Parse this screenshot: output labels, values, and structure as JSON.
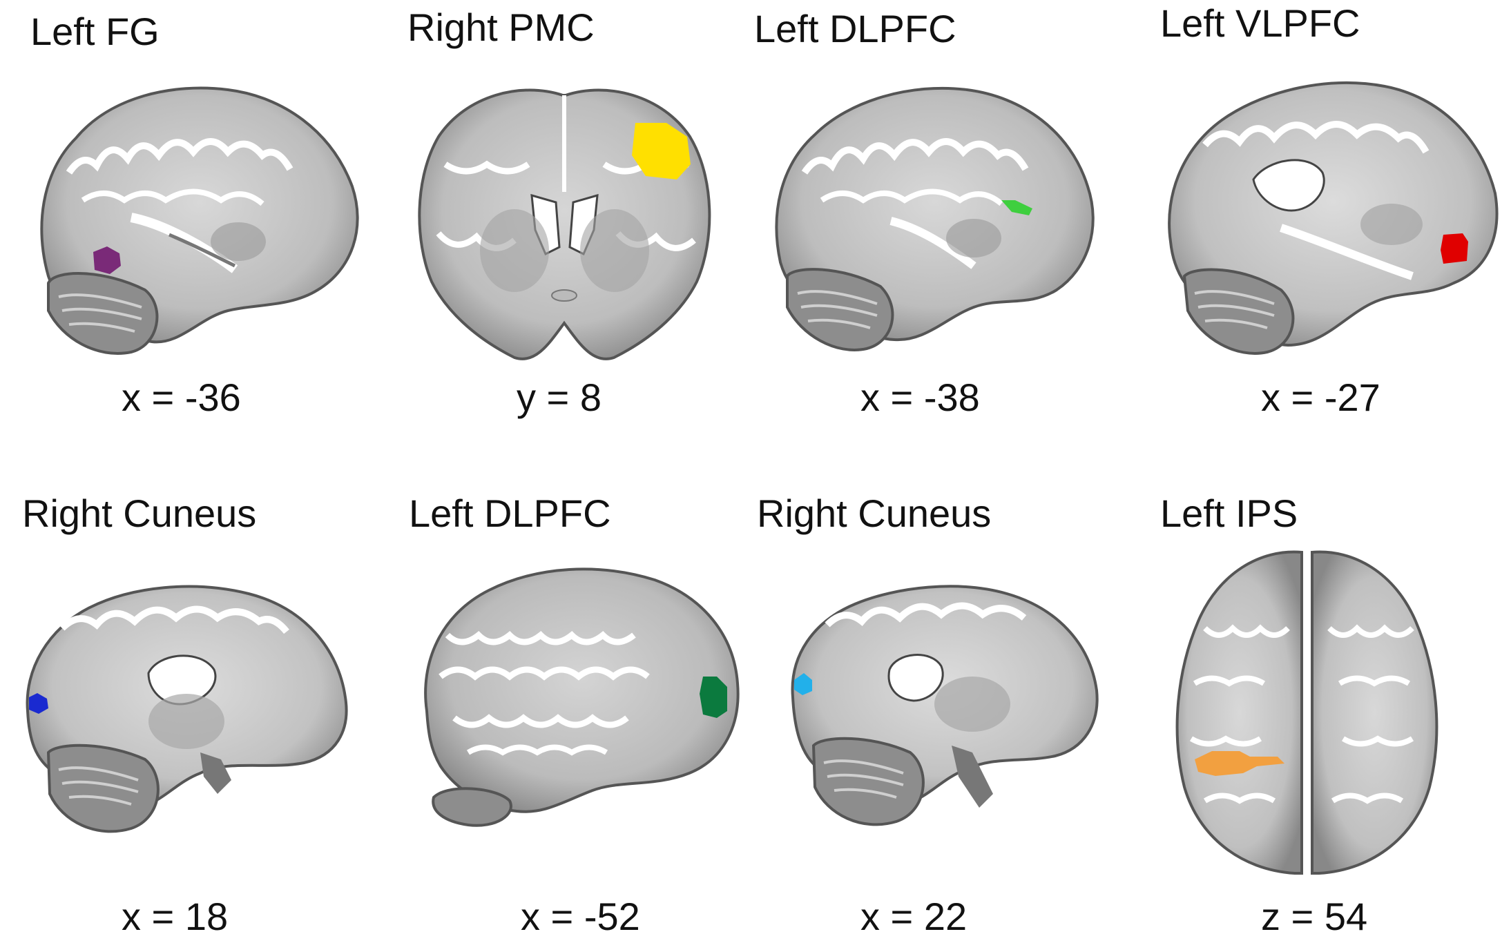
{
  "figure": {
    "panels": [
      {
        "title": "Left FG",
        "coordinate": "x = -36",
        "view": "sagittal",
        "roi_color": "#7a2a78"
      },
      {
        "title": "Right PMC",
        "coordinate": "y = 8",
        "view": "coronal",
        "roi_color": "#ffe000"
      },
      {
        "title": "Left DLPFC",
        "coordinate": "x = -38",
        "view": "sagittal",
        "roi_color": "#3fcf3f"
      },
      {
        "title": "Left VLPFC",
        "coordinate": "x = -27",
        "view": "sagittal",
        "roi_color": "#e00000"
      },
      {
        "title": "Right Cuneus",
        "coordinate": "x = 18",
        "view": "sagittal",
        "roi_color": "#1a2ad0"
      },
      {
        "title": "Left DLPFC",
        "coordinate": "x = -52",
        "view": "lateral-sagittal",
        "roi_color": "#0b7a3e"
      },
      {
        "title": "Right Cuneus",
        "coordinate": "x = 22",
        "view": "sagittal",
        "roi_color": "#22b0ea"
      },
      {
        "title": "Left IPS",
        "coordinate": "z = 54",
        "view": "axial",
        "roi_color": "#f2a040"
      }
    ]
  }
}
